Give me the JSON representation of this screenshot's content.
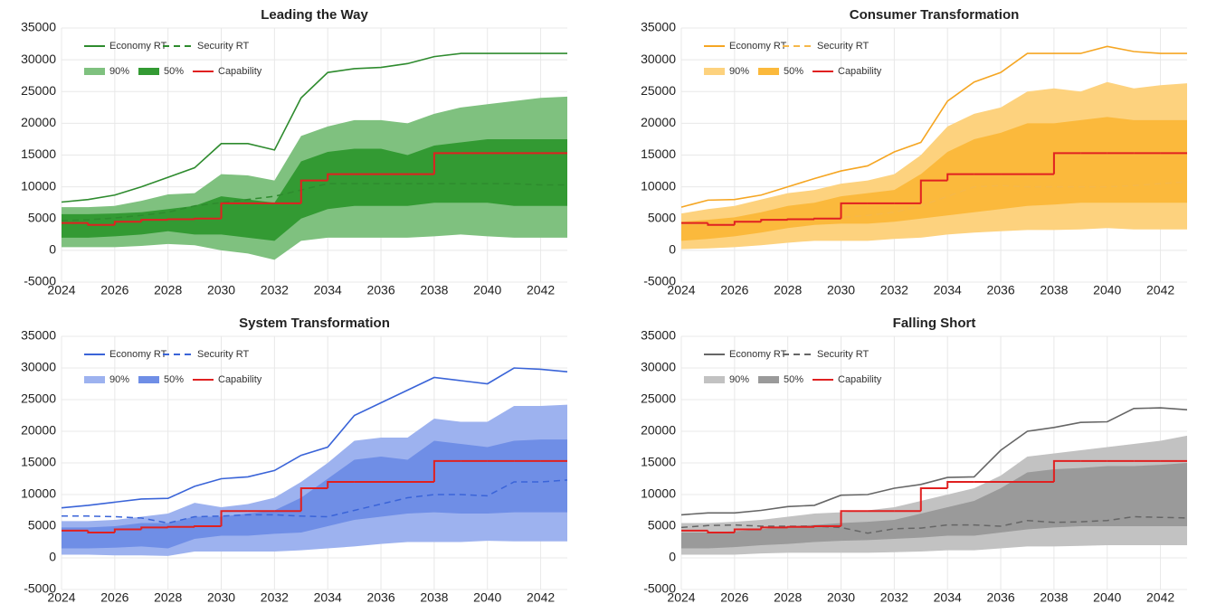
{
  "chart_data": [
    {
      "type": "line",
      "title": "Leading the Way",
      "x": [
        2024,
        2025,
        2026,
        2027,
        2028,
        2029,
        2030,
        2031,
        2032,
        2033,
        2034,
        2035,
        2036,
        2037,
        2038,
        2039,
        2040,
        2041,
        2042,
        2043
      ],
      "xlim": [
        2024,
        2043
      ],
      "xticks": [
        2024,
        2026,
        2028,
        2030,
        2032,
        2034,
        2036,
        2038,
        2040,
        2042
      ],
      "ylim": [
        -5000,
        35000
      ],
      "yticks": [
        -5000,
        0,
        5000,
        10000,
        15000,
        20000,
        25000,
        30000,
        35000
      ],
      "grid": true,
      "series": [
        {
          "name": "Economy RT",
          "color": "#2e8b2e",
          "values": [
            7600,
            8000,
            8700,
            10000,
            11500,
            13000,
            16800,
            16800,
            15800,
            24000,
            28000,
            28600,
            28800,
            29400,
            30500,
            31000,
            31000,
            31000,
            31000,
            31000
          ]
        },
        {
          "name": "Security RT",
          "color": "#2e8b2e",
          "dash": true,
          "values": [
            4700,
            4800,
            5100,
            5500,
            6000,
            7000,
            7500,
            8000,
            8500,
            9500,
            10500,
            10500,
            10500,
            10500,
            10500,
            10500,
            10500,
            10500,
            10300,
            10300
          ]
        },
        {
          "name": "90%",
          "color": "#7fc17f",
          "high": [
            6800,
            6800,
            7000,
            7800,
            8800,
            9000,
            12000,
            11800,
            11000,
            18000,
            19500,
            20500,
            20500,
            20000,
            21500,
            22500,
            23000,
            23500,
            24000,
            24200
          ],
          "low": [
            500,
            500,
            500,
            700,
            1000,
            800,
            0,
            -500,
            -1500,
            1500,
            2000,
            2000,
            2000,
            2000,
            2200,
            2500,
            2200,
            2000,
            2000,
            2000
          ]
        },
        {
          "name": "50%",
          "color": "#339a33",
          "high": [
            5700,
            5700,
            5800,
            6000,
            6500,
            7000,
            8500,
            8000,
            7500,
            14000,
            15500,
            16000,
            16000,
            15000,
            16500,
            17000,
            17500,
            17500,
            17500,
            17500
          ],
          "low": [
            2000,
            2000,
            2200,
            2500,
            3000,
            2500,
            2500,
            2000,
            1500,
            5000,
            6500,
            7000,
            7000,
            7000,
            7500,
            7500,
            7500,
            7000,
            7000,
            7000
          ]
        },
        {
          "name": "Capability",
          "color": "#e02020",
          "step": true,
          "values": [
            4300,
            4000,
            4500,
            4800,
            4900,
            5000,
            7400,
            7400,
            7400,
            11000,
            12000,
            12000,
            12000,
            12000,
            15300,
            15300,
            15300,
            15300,
            15300,
            15300
          ]
        }
      ]
    },
    {
      "type": "line",
      "title": "Consumer Transformation",
      "x": [
        2024,
        2025,
        2026,
        2027,
        2028,
        2029,
        2030,
        2031,
        2032,
        2033,
        2034,
        2035,
        2036,
        2037,
        2038,
        2039,
        2040,
        2041,
        2042,
        2043
      ],
      "xlim": [
        2024,
        2043
      ],
      "xticks": [
        2024,
        2026,
        2028,
        2030,
        2032,
        2034,
        2036,
        2038,
        2040,
        2042
      ],
      "ylim": [
        -5000,
        35000
      ],
      "yticks": [
        -5000,
        0,
        5000,
        10000,
        15000,
        20000,
        25000,
        30000,
        35000
      ],
      "grid": true,
      "series": [
        {
          "name": "Economy RT",
          "color": "#f5a623",
          "values": [
            6800,
            7900,
            8000,
            8700,
            10000,
            11300,
            12500,
            13300,
            15500,
            17000,
            23500,
            26500,
            28000,
            31000,
            31000,
            31000,
            32100,
            31300,
            31000,
            31000
          ]
        },
        {
          "name": "Security RT",
          "color": "#f5b84a",
          "dash": true,
          "values": [
            4000,
            4200,
            4300,
            4500,
            4800,
            5000,
            5200,
            5500,
            6000,
            7000,
            8500,
            10000,
            10200,
            10000,
            10000,
            10000,
            10000,
            10200,
            10500,
            10800
          ]
        },
        {
          "name": "90%",
          "color": "#fdd27e",
          "high": [
            5800,
            6500,
            7000,
            8000,
            9000,
            9500,
            10500,
            11000,
            12000,
            15000,
            19500,
            21500,
            22500,
            25000,
            25500,
            25000,
            26500,
            25500,
            26000,
            26300
          ],
          "low": [
            200,
            300,
            500,
            800,
            1200,
            1500,
            1500,
            1500,
            1800,
            2000,
            2500,
            2800,
            3000,
            3200,
            3200,
            3300,
            3500,
            3300,
            3300,
            3300
          ]
        },
        {
          "name": "50%",
          "color": "#fbb93c",
          "high": [
            4500,
            4800,
            5200,
            6000,
            7000,
            7500,
            8500,
            9000,
            9500,
            12000,
            15500,
            17500,
            18500,
            20000,
            20000,
            20500,
            21000,
            20500,
            20500,
            20500
          ],
          "low": [
            1500,
            1800,
            2200,
            2800,
            3500,
            4000,
            4200,
            4200,
            4500,
            5000,
            5500,
            6000,
            6500,
            7000,
            7200,
            7500,
            7500,
            7500,
            7500,
            7500
          ]
        },
        {
          "name": "Capability",
          "color": "#e02020",
          "step": true,
          "values": [
            4300,
            4000,
            4500,
            4800,
            4900,
            5000,
            7400,
            7400,
            7400,
            11000,
            12000,
            12000,
            12000,
            12000,
            15300,
            15300,
            15300,
            15300,
            15300,
            15300
          ]
        }
      ]
    },
    {
      "type": "line",
      "title": "System Transformation",
      "x": [
        2024,
        2025,
        2026,
        2027,
        2028,
        2029,
        2030,
        2031,
        2032,
        2033,
        2034,
        2035,
        2036,
        2037,
        2038,
        2039,
        2040,
        2041,
        2042,
        2043
      ],
      "xlim": [
        2024,
        2043
      ],
      "xticks": [
        2024,
        2026,
        2028,
        2030,
        2032,
        2034,
        2036,
        2038,
        2040,
        2042
      ],
      "ylim": [
        -5000,
        35000
      ],
      "yticks": [
        -5000,
        0,
        5000,
        10000,
        15000,
        20000,
        25000,
        30000,
        35000
      ],
      "grid": true,
      "series": [
        {
          "name": "Economy RT",
          "color": "#3a64d8",
          "values": [
            7900,
            8300,
            8800,
            9300,
            9400,
            11300,
            12500,
            12800,
            13800,
            16200,
            17500,
            22500,
            24500,
            26500,
            28500,
            28000,
            27500,
            30000,
            29800,
            29400
          ]
        },
        {
          "name": "Security RT",
          "color": "#3a64d8",
          "dash": true,
          "values": [
            6600,
            6600,
            6500,
            6300,
            5500,
            6500,
            6600,
            6800,
            6800,
            6600,
            6500,
            7500,
            8500,
            9500,
            10000,
            10000,
            9800,
            12000,
            12000,
            12300
          ]
        },
        {
          "name": "90%",
          "color": "#9db2ef",
          "high": [
            5800,
            5800,
            6000,
            6500,
            7000,
            8700,
            8000,
            8500,
            9500,
            12000,
            15000,
            18500,
            19000,
            19000,
            22000,
            21500,
            21500,
            24000,
            24000,
            24200
          ],
          "low": [
            500,
            500,
            400,
            400,
            300,
            1000,
            1000,
            1000,
            1000,
            1200,
            1500,
            1800,
            2200,
            2500,
            2500,
            2500,
            2700,
            2600,
            2600,
            2600
          ]
        },
        {
          "name": "50%",
          "color": "#6f8ee6",
          "high": [
            4800,
            4800,
            5000,
            5500,
            5500,
            6500,
            6500,
            7000,
            7500,
            9500,
            12500,
            15500,
            16000,
            15500,
            18500,
            18000,
            17500,
            18500,
            18700,
            18700
          ],
          "low": [
            1500,
            1500,
            1600,
            1800,
            1500,
            3000,
            3500,
            3500,
            3800,
            4000,
            5000,
            6000,
            6500,
            7000,
            7200,
            7000,
            7000,
            7200,
            7200,
            7200
          ]
        },
        {
          "name": "Capability",
          "color": "#e02020",
          "step": true,
          "values": [
            4300,
            4000,
            4500,
            4800,
            4900,
            5000,
            7400,
            7400,
            7400,
            11000,
            12000,
            12000,
            12000,
            12000,
            15300,
            15300,
            15300,
            15300,
            15300,
            15300
          ]
        }
      ]
    },
    {
      "type": "line",
      "title": "Falling Short",
      "x": [
        2024,
        2025,
        2026,
        2027,
        2028,
        2029,
        2030,
        2031,
        2032,
        2033,
        2034,
        2035,
        2036,
        2037,
        2038,
        2039,
        2040,
        2041,
        2042,
        2043
      ],
      "xlim": [
        2024,
        2043
      ],
      "xticks": [
        2024,
        2026,
        2028,
        2030,
        2032,
        2034,
        2036,
        2038,
        2040,
        2042
      ],
      "ylim": [
        -5000,
        35000
      ],
      "yticks": [
        -5000,
        0,
        5000,
        10000,
        15000,
        20000,
        25000,
        30000,
        35000
      ],
      "grid": true,
      "series": [
        {
          "name": "Economy RT",
          "color": "#666666",
          "values": [
            6800,
            7100,
            7100,
            7500,
            8100,
            8300,
            9900,
            10000,
            11000,
            11600,
            12700,
            12800,
            17000,
            20000,
            20600,
            21400,
            21500,
            23600,
            23700,
            23400
          ]
        },
        {
          "name": "Security RT",
          "color": "#666666",
          "dash": true,
          "values": [
            4800,
            5100,
            5200,
            5000,
            5000,
            5000,
            4800,
            3900,
            4600,
            4700,
            5200,
            5200,
            5000,
            5900,
            5600,
            5700,
            5900,
            6500,
            6400,
            6300
          ]
        },
        {
          "name": "90%",
          "color": "#c2c2c2",
          "high": [
            5500,
            5500,
            5700,
            6000,
            6500,
            7000,
            7200,
            7500,
            8000,
            9000,
            10000,
            11000,
            13000,
            16000,
            16500,
            17000,
            17500,
            18000,
            18500,
            19300
          ],
          "low": [
            500,
            500,
            500,
            700,
            800,
            800,
            800,
            800,
            900,
            1000,
            1200,
            1200,
            1500,
            1800,
            1800,
            1900,
            2000,
            2000,
            2000,
            2000
          ]
        },
        {
          "name": "50%",
          "color": "#9a9a9a",
          "high": [
            4000,
            4000,
            4200,
            4500,
            5000,
            5200,
            5500,
            5700,
            6000,
            7000,
            8000,
            9000,
            11000,
            13500,
            14000,
            14200,
            14500,
            14500,
            14700,
            15000
          ],
          "low": [
            1500,
            1500,
            1700,
            2000,
            2200,
            2500,
            2700,
            2800,
            3000,
            3200,
            3500,
            3500,
            4000,
            4500,
            4800,
            5000,
            5000,
            5000,
            5000,
            5000
          ]
        },
        {
          "name": "Capability",
          "color": "#e02020",
          "step": true,
          "values": [
            4300,
            4000,
            4500,
            4800,
            4900,
            5000,
            7400,
            7400,
            7400,
            11000,
            12000,
            12000,
            12000,
            12000,
            15300,
            15300,
            15300,
            15300,
            15300,
            15300
          ]
        }
      ]
    }
  ]
}
